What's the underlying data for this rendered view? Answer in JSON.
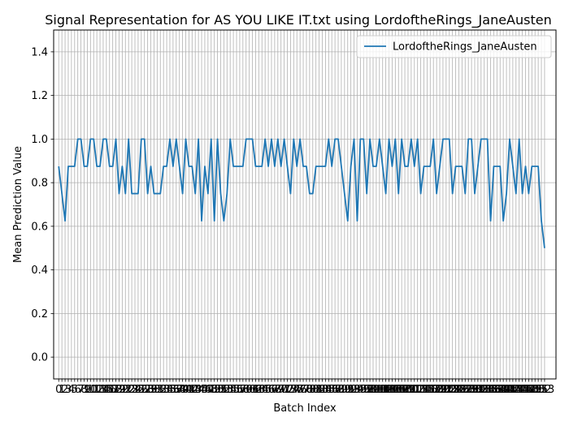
{
  "chart_data": {
    "type": "line",
    "title": "Signal Representation for AS YOU LIKE IT.txt using LordoftheRings_JaneAusten",
    "xlabel": "Batch Index",
    "ylabel": "Mean Prediction Value",
    "ylim": [
      -0.1,
      1.5
    ],
    "xlim": [
      -1.6,
      156.6
    ],
    "yticks": [
      0.0,
      0.2,
      0.4,
      0.6,
      0.8,
      1.0,
      1.2,
      1.4
    ],
    "grid": true,
    "legend_position": "top-right",
    "series": [
      {
        "name": "LordoftheRings_JaneAusten",
        "color": "#1f77b4",
        "x": [
          0,
          1,
          2,
          3,
          4,
          5,
          6,
          7,
          8,
          9,
          10,
          11,
          12,
          13,
          14,
          15,
          16,
          17,
          18,
          19,
          20,
          21,
          22,
          23,
          24,
          25,
          26,
          27,
          28,
          29,
          30,
          31,
          32,
          33,
          34,
          35,
          36,
          37,
          38,
          39,
          40,
          41,
          42,
          43,
          44,
          45,
          46,
          47,
          48,
          49,
          50,
          51,
          52,
          53,
          54,
          55,
          56,
          57,
          58,
          59,
          60,
          61,
          62,
          63,
          64,
          65,
          66,
          67,
          68,
          69,
          70,
          71,
          72,
          73,
          74,
          75,
          76,
          77,
          78,
          79,
          80,
          81,
          82,
          83,
          84,
          85,
          86,
          87,
          88,
          89,
          90,
          91,
          92,
          93,
          94,
          95,
          96,
          97,
          98,
          99,
          100,
          101,
          102,
          103,
          104,
          105,
          106,
          107,
          108,
          109,
          110,
          111,
          112,
          113,
          114,
          115,
          116,
          117,
          118,
          119,
          120,
          121,
          122,
          123,
          124,
          125,
          126,
          127,
          128,
          129,
          130,
          131,
          132,
          133,
          134,
          135,
          136,
          137,
          138,
          139,
          140,
          141,
          142,
          143,
          144,
          145,
          146,
          147,
          148,
          149,
          150,
          151,
          152,
          153
        ],
        "values": [
          0.875,
          0.75,
          0.625,
          0.875,
          0.875,
          0.875,
          1.0,
          1.0,
          0.875,
          0.875,
          1.0,
          1.0,
          0.875,
          0.875,
          1.0,
          1.0,
          0.875,
          0.875,
          1.0,
          0.75,
          0.875,
          0.75,
          1.0,
          0.75,
          0.75,
          0.75,
          1.0,
          1.0,
          0.75,
          0.875,
          0.75,
          0.75,
          0.75,
          0.875,
          0.875,
          1.0,
          0.875,
          1.0,
          0.875,
          0.75,
          1.0,
          0.875,
          0.875,
          0.75,
          1.0,
          0.625,
          0.875,
          0.75,
          1.0,
          0.625,
          1.0,
          0.75,
          0.625,
          0.75,
          1.0,
          0.875,
          0.875,
          0.875,
          0.875,
          1.0,
          1.0,
          1.0,
          0.875,
          0.875,
          0.875,
          1.0,
          0.875,
          1.0,
          0.875,
          1.0,
          0.875,
          1.0,
          0.875,
          0.75,
          1.0,
          0.875,
          1.0,
          0.875,
          0.875,
          0.75,
          0.75,
          0.875,
          0.875,
          0.875,
          0.875,
          1.0,
          0.875,
          1.0,
          1.0,
          0.875,
          0.75,
          0.625,
          0.875,
          1.0,
          0.625,
          1.0,
          1.0,
          0.75,
          1.0,
          0.875,
          0.875,
          1.0,
          0.875,
          0.75,
          1.0,
          0.875,
          1.0,
          0.75,
          1.0,
          0.875,
          0.875,
          1.0,
          0.875,
          1.0,
          0.75,
          0.875,
          0.875,
          0.875,
          1.0,
          0.75,
          0.875,
          1.0,
          1.0,
          1.0,
          0.75,
          0.875,
          0.875,
          0.875,
          0.75,
          1.0,
          1.0,
          0.75,
          0.875,
          1.0,
          1.0,
          1.0,
          0.625,
          0.875,
          0.875,
          0.875,
          0.625,
          0.75,
          1.0,
          0.875,
          0.75,
          1.0,
          0.75,
          0.875,
          0.75,
          0.875,
          0.875,
          0.875,
          0.625,
          0.5
        ]
      }
    ]
  }
}
